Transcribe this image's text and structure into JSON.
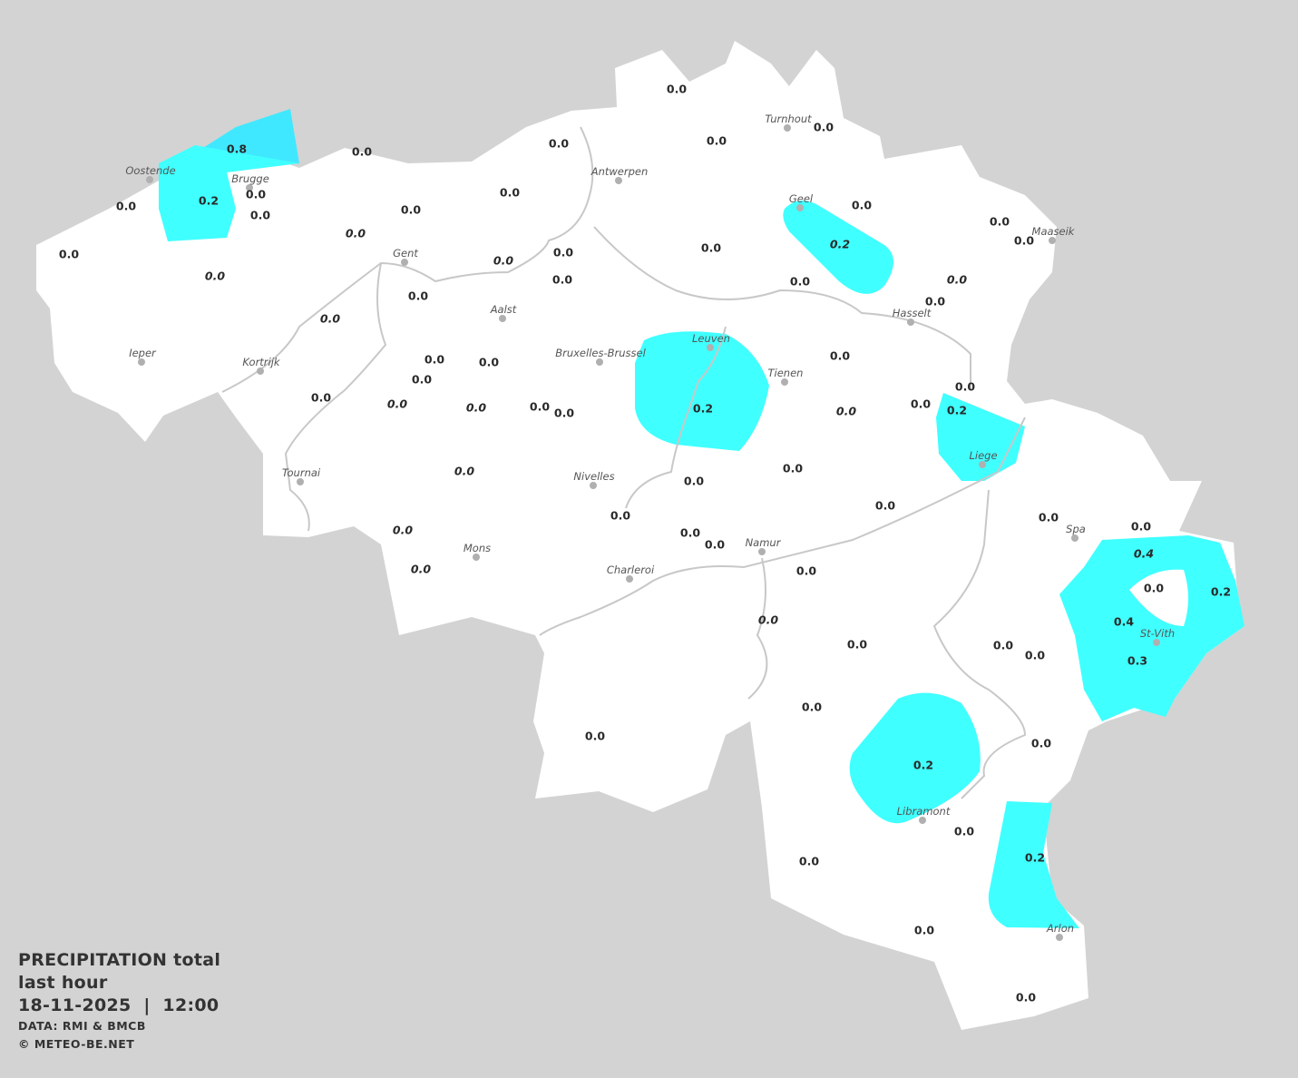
{
  "legend": {
    "title_line1": "PRECIPITATION total",
    "title_line2": "last hour",
    "datetime": "18-11-2025  |  12:00",
    "data_source": "DATA: RMI & BMCB",
    "copyright": "© METEO-BE.NET"
  },
  "colors": {
    "background": "#d3d3d3",
    "land": "#ffffff",
    "precip_0_2": "#40ffff",
    "precip_0_8": "#40e8ff",
    "rivers": "#c8c8c8",
    "city_dot": "#b0b0b0"
  },
  "unit_implied": "mm",
  "cities": [
    "Oostende",
    "Brugge",
    "Antwerpen",
    "Turnhout",
    "Geel",
    "Maaseik",
    "Gent",
    "Aalst",
    "Hasselt",
    "Ieper",
    "Kortrijk",
    "Bruxelles-Brussel",
    "Leuven",
    "Tienen",
    "Liege",
    "Tournai",
    "Nivelles",
    "Namur",
    "Mons",
    "Charleroi",
    "Spa",
    "St-Vith",
    "Libramont",
    "Arlon"
  ],
  "stations": [
    {
      "v": "0.0"
    },
    {
      "v": "0.0"
    },
    {
      "v": "0.0"
    },
    {
      "v": "0.0"
    },
    {
      "v": "0.0"
    },
    {
      "v": "0.8"
    },
    {
      "v": "0.0"
    },
    {
      "v": "0.2"
    },
    {
      "v": "0.0"
    },
    {
      "v": "0.0"
    },
    {
      "v": "0.0"
    },
    {
      "v": "0.0"
    },
    {
      "v": "0.0"
    },
    {
      "v": "0.0",
      "italic": true
    },
    {
      "v": "0.0",
      "italic": true
    },
    {
      "v": "0.0"
    },
    {
      "v": "0.0",
      "italic": true
    },
    {
      "v": "0.0"
    },
    {
      "v": "0.0"
    },
    {
      "v": "0.0",
      "italic": true
    },
    {
      "v": "0.0"
    },
    {
      "v": "0.2",
      "italic": true
    },
    {
      "v": "0.0"
    },
    {
      "v": "0.0"
    },
    {
      "v": "0.0"
    },
    {
      "v": "0.0"
    },
    {
      "v": "0.0",
      "italic": true
    },
    {
      "v": "0.0"
    },
    {
      "v": "0.0"
    },
    {
      "v": "0.0"
    },
    {
      "v": "0.0"
    },
    {
      "v": "0.0"
    },
    {
      "v": "0.0"
    },
    {
      "v": "0.0",
      "italic": true
    },
    {
      "v": "0.0",
      "italic": true
    },
    {
      "v": "0.0"
    },
    {
      "v": "0.0"
    },
    {
      "v": "0.2"
    },
    {
      "v": "0.0",
      "italic": true
    },
    {
      "v": "0.0"
    },
    {
      "v": "0.0"
    },
    {
      "v": "0.2"
    },
    {
      "v": "0.0"
    },
    {
      "v": "0.0"
    },
    {
      "v": "0.0",
      "italic": true
    },
    {
      "v": "0.0"
    },
    {
      "v": "0.0"
    },
    {
      "v": "0.0",
      "italic": true
    },
    {
      "v": "0.0"
    },
    {
      "v": "0.0"
    },
    {
      "v": "0.0",
      "italic": true
    },
    {
      "v": "0.0"
    },
    {
      "v": "0.0",
      "italic": true
    },
    {
      "v": "0.0"
    },
    {
      "v": "0.0"
    },
    {
      "v": "0.4",
      "italic": true
    },
    {
      "v": "0.0"
    },
    {
      "v": "0.2"
    },
    {
      "v": "0.4"
    },
    {
      "v": "0.3"
    },
    {
      "v": "0.0"
    },
    {
      "v": "0.0"
    },
    {
      "v": "0.0"
    },
    {
      "v": "0.0"
    },
    {
      "v": "0.0"
    },
    {
      "v": "0.0"
    },
    {
      "v": "0.2"
    },
    {
      "v": "0.0"
    },
    {
      "v": "0.2"
    },
    {
      "v": "0.0"
    },
    {
      "v": "0.0"
    },
    {
      "v": "0.0"
    }
  ]
}
